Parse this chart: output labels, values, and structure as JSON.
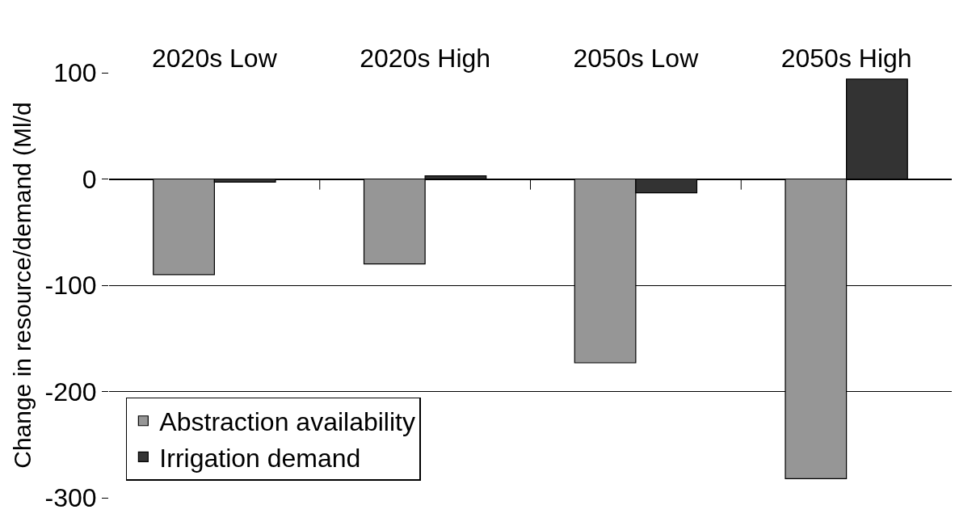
{
  "chart_data": {
    "type": "bar",
    "categories": [
      "2020s Low",
      "2020s High",
      "2050s Low",
      "2050s High"
    ],
    "ylabel": "Change in resource/demand (Ml/d",
    "series": [
      {
        "name": "Abstraction availability",
        "color": "#969696",
        "values": [
          -90,
          -80,
          -173,
          -282
        ]
      },
      {
        "name": "Irrigation demand",
        "color": "#333333",
        "values": [
          -3,
          3,
          -13,
          94
        ]
      }
    ],
    "ylim": [
      -300,
      100
    ],
    "yticks": [
      -300,
      -200,
      -100,
      0,
      100
    ],
    "grid": "y",
    "legend": "bottom left"
  }
}
